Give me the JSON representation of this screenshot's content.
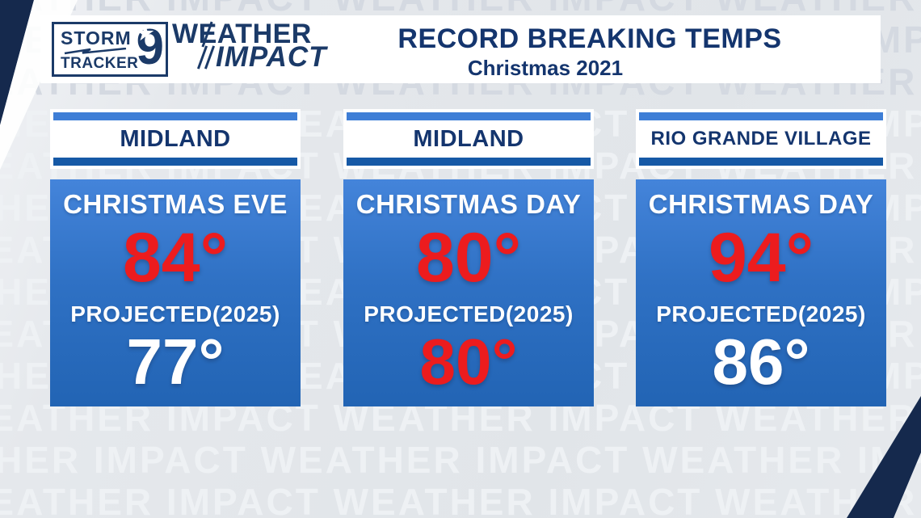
{
  "watermark_text": "WEATHER IMPACT",
  "logo": {
    "storm_label": "STORM",
    "tracker_label": "TRACKER",
    "channel_number": "9",
    "star_icon": "★",
    "weather_label": "WEATHER",
    "impact_label": "IMPACT"
  },
  "header": {
    "title": "RECORD BREAKING TEMPS",
    "subtitle": "Christmas 2021"
  },
  "cards": [
    {
      "location": "MIDLAND",
      "day_label": "CHRISTMAS EVE",
      "record_temp": "84°",
      "record_temp_color": "#ec1c1e",
      "projected_label": "PROJECTED(2025)",
      "projected_temp": "77°",
      "projected_temp_color": "#ffffff"
    },
    {
      "location": "MIDLAND",
      "day_label": "CHRISTMAS DAY",
      "record_temp": "80°",
      "record_temp_color": "#ec1c1e",
      "projected_label": "PROJECTED(2025)",
      "projected_temp": "80°",
      "projected_temp_color": "#ec1c1e"
    },
    {
      "location": "RIO GRANDE VILLAGE",
      "day_label": "CHRISTMAS DAY",
      "record_temp": "94°",
      "record_temp_color": "#ec1c1e",
      "projected_label": "PROJECTED(2025)",
      "projected_temp": "86°",
      "projected_temp_color": "#ffffff"
    }
  ],
  "colors": {
    "navy": "#14356e",
    "logo_navy": "#1b3a68",
    "red": "#ec1c1e",
    "panel_top_strip": "#3e7ed6",
    "panel_bottom_strip": "#1659a6",
    "card_gradient_top": "#4484da",
    "card_gradient_bottom": "#2264b4",
    "background_gray": "#e3e6ea",
    "corner_navy": "#15294d"
  }
}
